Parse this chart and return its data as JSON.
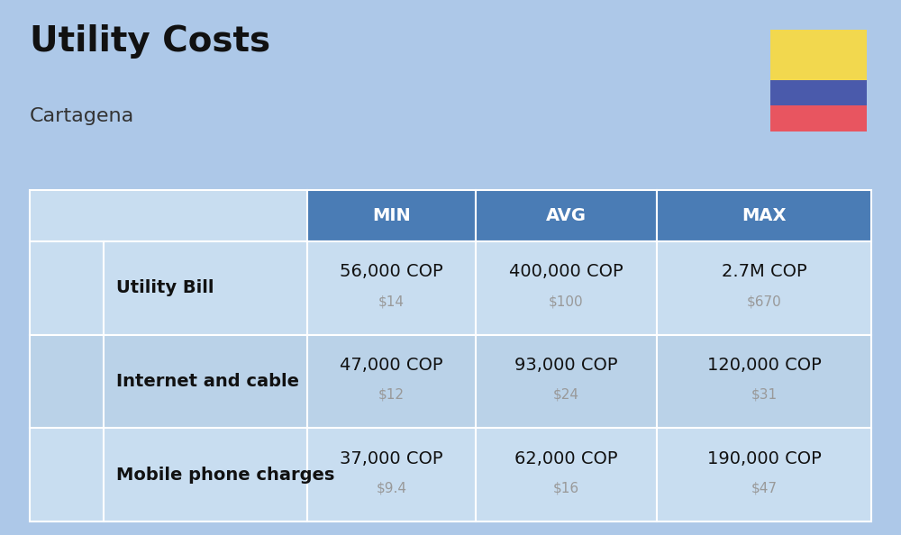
{
  "title": "Utility Costs",
  "subtitle": "Cartagena",
  "background_color": "#adc8e8",
  "header_bg_color": "#4a7cb5",
  "header_text_color": "#ffffff",
  "row_bg_color_odd": "#c8ddf0",
  "row_bg_color_even": "#bad2e8",
  "cell_edge_color": "#ffffff",
  "col_headers": [
    "MIN",
    "AVG",
    "MAX"
  ],
  "rows": [
    {
      "label": "Utility Bill",
      "min_cop": "56,000 COP",
      "min_usd": "$14",
      "avg_cop": "400,000 COP",
      "avg_usd": "$100",
      "max_cop": "2.7M COP",
      "max_usd": "$670"
    },
    {
      "label": "Internet and cable",
      "min_cop": "47,000 COP",
      "min_usd": "$12",
      "avg_cop": "93,000 COP",
      "avg_usd": "$24",
      "max_cop": "120,000 COP",
      "max_usd": "$31"
    },
    {
      "label": "Mobile phone charges",
      "min_cop": "37,000 COP",
      "min_usd": "$9.4",
      "avg_cop": "62,000 COP",
      "avg_usd": "$16",
      "max_cop": "190,000 COP",
      "max_usd": "$47"
    }
  ],
  "flag_yellow": "#f2d84e",
  "flag_blue": "#4a5aab",
  "flag_red": "#e85560",
  "title_fontsize": 28,
  "subtitle_fontsize": 16,
  "cop_fontsize": 14,
  "usd_fontsize": 11,
  "label_fontsize": 14,
  "header_fontsize": 14,
  "fig_width": 10.0,
  "fig_height": 5.94,
  "dpi": 100
}
